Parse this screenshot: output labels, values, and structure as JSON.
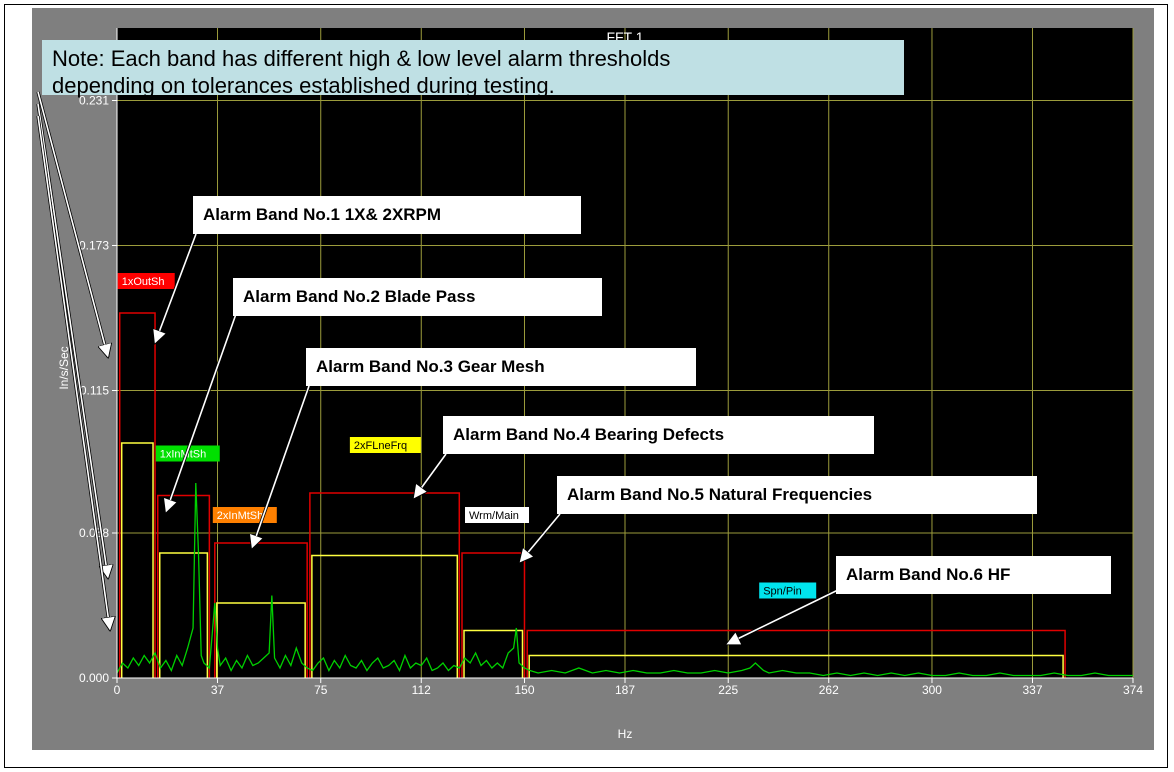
{
  "chart_data": {
    "type": "line",
    "title": "FFT 1",
    "xlabel": "Hz",
    "ylabel": "In/s/Sec",
    "xlim": [
      0,
      374
    ],
    "ylim": [
      0,
      0.26
    ],
    "x_ticks": [
      "0",
      "37",
      "75",
      "112",
      "150",
      "187",
      "225",
      "262",
      "300",
      "337",
      "374"
    ],
    "x_tick_values": [
      0,
      37,
      75,
      112,
      150,
      187,
      225,
      262,
      300,
      337,
      374
    ],
    "y_ticks": [
      "0.000",
      "0.058",
      "0.115",
      "0.173",
      "0.231"
    ],
    "y_tick_values": [
      0.0,
      0.058,
      0.115,
      0.173,
      0.231
    ],
    "grid": true,
    "colors": {
      "background": "#000000",
      "panel": "#7f7f7f",
      "grid": "#9c9c3c",
      "spectrum": "#00d000",
      "high_alarm": "#e00000",
      "low_alarm": "#ffff40",
      "tick_text": "#ffffff"
    },
    "bands": [
      {
        "label": "1xOutSh",
        "x_start": 1,
        "x_end": 14,
        "high": 0.146,
        "low": 0.094,
        "label_color": "#ff0000",
        "label_text_color": "#ffffff"
      },
      {
        "label": "1xInMtSh",
        "x_start": 15,
        "x_end": 34,
        "high": 0.073,
        "low": 0.05,
        "label_color": "#00e000",
        "label_text_color": "#ffffff"
      },
      {
        "label": "2xInMtSh",
        "x_start": 36,
        "x_end": 70,
        "high": 0.054,
        "low": 0.03,
        "label_color": "#ff8000",
        "label_text_color": "#ffffff"
      },
      {
        "label": "2xFLneFrq",
        "x_start": 71,
        "x_end": 126,
        "high": 0.074,
        "low": 0.049,
        "label_color": "#ffff00",
        "label_text_color": "#000000"
      },
      {
        "label": "Wrm/Main",
        "x_start": 127,
        "x_end": 150,
        "high": 0.05,
        "low": 0.019,
        "label_color": "#ffffff",
        "label_text_color": "#000000"
      },
      {
        "label": "Spn/Pin",
        "x_start": 151,
        "x_end": 349,
        "high": 0.019,
        "low": 0.009,
        "label_color": "#00e5ee",
        "label_text_color": "#000000"
      }
    ],
    "spectrum": {
      "x": [
        0,
        2,
        4,
        6,
        8,
        10,
        12,
        14,
        16,
        18,
        20,
        22,
        24,
        26,
        28,
        29,
        30,
        31,
        32,
        34,
        36,
        37,
        38,
        40,
        42,
        44,
        46,
        48,
        50,
        52,
        54,
        56,
        57,
        58,
        60,
        62,
        64,
        66,
        68,
        70,
        72,
        74,
        76,
        78,
        80,
        82,
        84,
        86,
        88,
        90,
        92,
        94,
        96,
        98,
        100,
        102,
        104,
        106,
        108,
        110,
        112,
        114,
        116,
        118,
        120,
        122,
        124,
        126,
        128,
        130,
        132,
        134,
        136,
        138,
        140,
        142,
        144,
        146,
        147,
        148,
        150,
        152,
        155,
        160,
        165,
        170,
        175,
        180,
        185,
        190,
        195,
        200,
        205,
        210,
        215,
        220,
        225,
        230,
        233,
        235,
        238,
        240,
        245,
        250,
        255,
        260,
        265,
        270,
        275,
        280,
        285,
        290,
        295,
        300,
        305,
        310,
        315,
        320,
        325,
        330,
        335,
        340,
        345,
        350,
        355,
        360,
        365,
        370,
        374
      ],
      "y": [
        0.002,
        0.006,
        0.004,
        0.008,
        0.005,
        0.009,
        0.006,
        0.01,
        0.004,
        0.007,
        0.003,
        0.009,
        0.005,
        0.012,
        0.02,
        0.078,
        0.05,
        0.009,
        0.006,
        0.004,
        0.03,
        0.012,
        0.005,
        0.008,
        0.003,
        0.007,
        0.004,
        0.009,
        0.005,
        0.006,
        0.008,
        0.01,
        0.033,
        0.008,
        0.004,
        0.009,
        0.005,
        0.012,
        0.006,
        0.004,
        0.003,
        0.006,
        0.008,
        0.003,
        0.007,
        0.004,
        0.009,
        0.005,
        0.004,
        0.007,
        0.003,
        0.006,
        0.008,
        0.004,
        0.005,
        0.007,
        0.003,
        0.009,
        0.004,
        0.006,
        0.005,
        0.008,
        0.003,
        0.004,
        0.006,
        0.003,
        0.005,
        0.004,
        0.008,
        0.006,
        0.01,
        0.005,
        0.007,
        0.004,
        0.006,
        0.004,
        0.01,
        0.012,
        0.02,
        0.006,
        0.004,
        0.003,
        0.002,
        0.003,
        0.002,
        0.004,
        0.002,
        0.003,
        0.002,
        0.003,
        0.002,
        0.002,
        0.003,
        0.002,
        0.002,
        0.003,
        0.002,
        0.003,
        0.004,
        0.006,
        0.003,
        0.002,
        0.003,
        0.002,
        0.002,
        0.001,
        0.002,
        0.001,
        0.002,
        0.001,
        0.002,
        0.001,
        0.002,
        0.001,
        0.001,
        0.002,
        0.001,
        0.001,
        0.002,
        0.001,
        0.001,
        0.001,
        0.002,
        0.001,
        0.001,
        0.002,
        0.001,
        0.001,
        0.001
      ]
    }
  },
  "note": {
    "line1": "Note: Each band has different high & low level alarm thresholds",
    "line2": "depending on tolerances established during testing."
  },
  "callouts": [
    {
      "id": "band1",
      "text": "Alarm Band No.1 1X& 2XRPM"
    },
    {
      "id": "band2",
      "text": "Alarm Band No.2 Blade Pass"
    },
    {
      "id": "band3",
      "text": "Alarm Band No.3 Gear Mesh"
    },
    {
      "id": "band4",
      "text": "Alarm Band No.4 Bearing Defects"
    },
    {
      "id": "band5",
      "text": "Alarm Band No.5 Natural Frequencies"
    },
    {
      "id": "band6",
      "text": "Alarm Band No.6 HF"
    }
  ]
}
